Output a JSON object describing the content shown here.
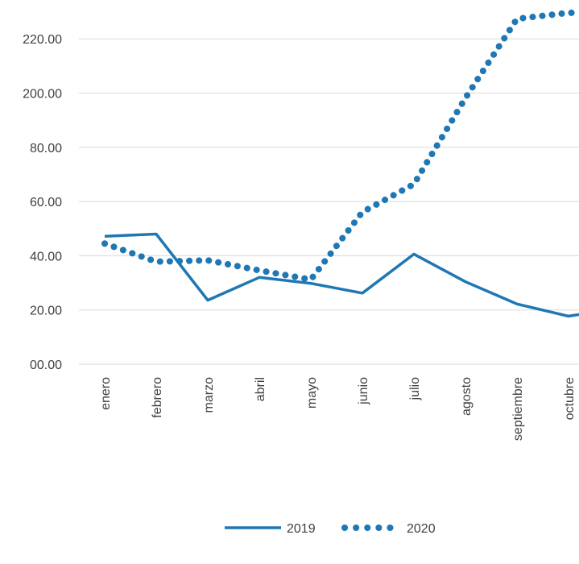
{
  "chart_data": {
    "type": "line",
    "categories": [
      "enero",
      "febrero",
      "marzo",
      "abril",
      "mayo",
      "junio",
      "julio",
      "agosto",
      "septiembre",
      "octubre"
    ],
    "y_tick_labels": [
      "00.00",
      "20.00",
      "40.00",
      "60.00",
      "80.00",
      "200.00",
      "220.00"
    ],
    "series": [
      {
        "name": "2019",
        "style": "solid",
        "color": "#1f77b4",
        "values": [
          47.2,
          48.0,
          23.6,
          32.0,
          29.8,
          26.2,
          40.6,
          30.4,
          22.2,
          17.7
        ]
      },
      {
        "name": "2020",
        "style": "dotted",
        "color": "#1f77b4",
        "values": [
          44.5,
          37.8,
          38.3,
          34.6,
          31.2,
          56.1,
          66.4,
          98.2,
          127.4,
          129.6
        ]
      }
    ],
    "grid": true,
    "legend_position": "bottom"
  }
}
